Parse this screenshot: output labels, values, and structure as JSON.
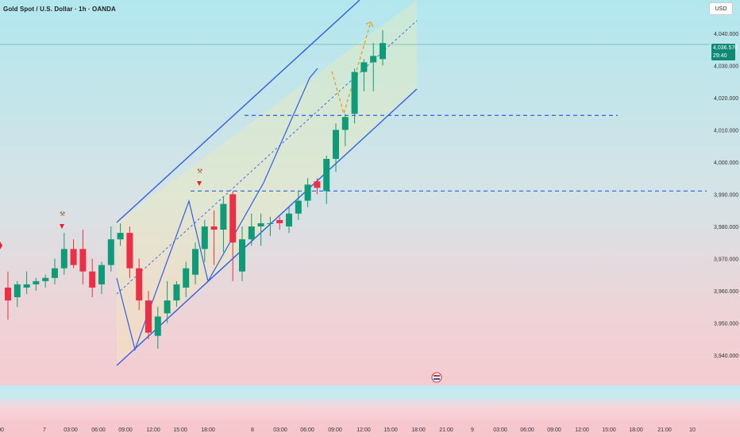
{
  "header": {
    "title": "Gold Spot / U.S. Dollar · 1h · OANDA",
    "currency": "USD"
  },
  "price_tag": {
    "price": "4,036.570",
    "countdown": "29:40"
  },
  "chart_data": {
    "type": "candlestick",
    "symbol": "Gold Spot / U.S. Dollar",
    "interval": "1h",
    "broker": "OANDA",
    "y_ticks": [
      "4,040.000",
      "4,030.000",
      "4,020.000",
      "4,010.000",
      "4,000.000",
      "3,990.000",
      "3,980.000",
      "3,970.000",
      "3,960.000",
      "3,950.000",
      "3,940.000"
    ],
    "y_tick_values": [
      4040,
      4030,
      4020,
      4010,
      4000,
      3990,
      3980,
      3970,
      3960,
      3950,
      3940
    ],
    "ylim": [
      3935,
      4050
    ],
    "x_ticks": [
      ":00",
      "7",
      "03:00",
      "06:00",
      "09:00",
      "12:00",
      "15:00",
      "18:00",
      "8",
      "03:00",
      "06:00",
      "09:00",
      "12:00",
      "15:00",
      "18:00",
      "21:00",
      "9",
      "03:00",
      "06:00",
      "09:00",
      "12:00",
      "15:00",
      "18:00",
      "21:00",
      "10"
    ],
    "candles": [
      {
        "o": 3961,
        "h": 3966,
        "l": 3951,
        "c": 3957
      },
      {
        "o": 3958,
        "h": 3963,
        "l": 3955,
        "c": 3962
      },
      {
        "o": 3961,
        "h": 3966,
        "l": 3959,
        "c": 3962
      },
      {
        "o": 3962,
        "h": 3964,
        "l": 3960,
        "c": 3963
      },
      {
        "o": 3963,
        "h": 3965,
        "l": 3961,
        "c": 3964
      },
      {
        "o": 3964,
        "h": 3970,
        "l": 3962,
        "c": 3967
      },
      {
        "o": 3967,
        "h": 3978,
        "l": 3965,
        "c": 3973
      },
      {
        "o": 3973,
        "h": 3976,
        "l": 3967,
        "c": 3968
      },
      {
        "o": 3973,
        "h": 3979,
        "l": 3962,
        "c": 3966
      },
      {
        "o": 3966,
        "h": 3970,
        "l": 3958,
        "c": 3961
      },
      {
        "o": 3962,
        "h": 3969,
        "l": 3959,
        "c": 3968
      },
      {
        "o": 3968,
        "h": 3980,
        "l": 3966,
        "c": 3976
      },
      {
        "o": 3976,
        "h": 3981,
        "l": 3974,
        "c": 3978
      },
      {
        "o": 3978,
        "h": 3980,
        "l": 3964,
        "c": 3967
      },
      {
        "o": 3967,
        "h": 3970,
        "l": 3954,
        "c": 3957
      },
      {
        "o": 3957,
        "h": 3960,
        "l": 3945,
        "c": 3947
      },
      {
        "o": 3946,
        "h": 3955,
        "l": 3942,
        "c": 3952
      },
      {
        "o": 3953,
        "h": 3963,
        "l": 3950,
        "c": 3957
      },
      {
        "o": 3957,
        "h": 3963,
        "l": 3955,
        "c": 3962
      },
      {
        "o": 3961,
        "h": 3969,
        "l": 3958,
        "c": 3967
      },
      {
        "o": 3965,
        "h": 3975,
        "l": 3962,
        "c": 3973
      },
      {
        "o": 3973,
        "h": 3982,
        "l": 3969,
        "c": 3980
      },
      {
        "o": 3980,
        "h": 3985,
        "l": 3968,
        "c": 3979
      },
      {
        "o": 3979,
        "h": 3989,
        "l": 3972,
        "c": 3987
      },
      {
        "o": 3990,
        "h": 3991,
        "l": 3963,
        "c": 3975
      },
      {
        "o": 3966,
        "h": 3980,
        "l": 3963,
        "c": 3976
      },
      {
        "o": 3976,
        "h": 3984,
        "l": 3974,
        "c": 3980
      },
      {
        "o": 3980,
        "h": 3984,
        "l": 3974,
        "c": 3981
      },
      {
        "o": 3981,
        "h": 3983,
        "l": 3977,
        "c": 3981
      },
      {
        "o": 3982,
        "h": 3983,
        "l": 3979,
        "c": 3981
      },
      {
        "o": 3980,
        "h": 3986,
        "l": 3978,
        "c": 3984
      },
      {
        "o": 3984,
        "h": 3991,
        "l": 3982,
        "c": 3988
      },
      {
        "o": 3988,
        "h": 3995,
        "l": 3986,
        "c": 3993
      },
      {
        "o": 3994,
        "h": 3995,
        "l": 3990,
        "c": 3992
      },
      {
        "o": 3991,
        "h": 4002,
        "l": 3987,
        "c": 4001
      },
      {
        "o": 4001,
        "h": 4012,
        "l": 3997,
        "c": 4010
      },
      {
        "o": 4010,
        "h": 4015,
        "l": 4005,
        "c": 4014
      },
      {
        "o": 4015,
        "h": 4029,
        "l": 4012,
        "c": 4028
      },
      {
        "o": 4028,
        "h": 4032,
        "l": 4022,
        "c": 4031
      },
      {
        "o": 4031,
        "h": 4037,
        "l": 4022,
        "c": 4033
      },
      {
        "o": 4032,
        "h": 4041,
        "l": 4030,
        "c": 4037
      }
    ],
    "horizontal_levels": [
      4014.5,
      3991
    ],
    "last_price": 4036.57
  }
}
